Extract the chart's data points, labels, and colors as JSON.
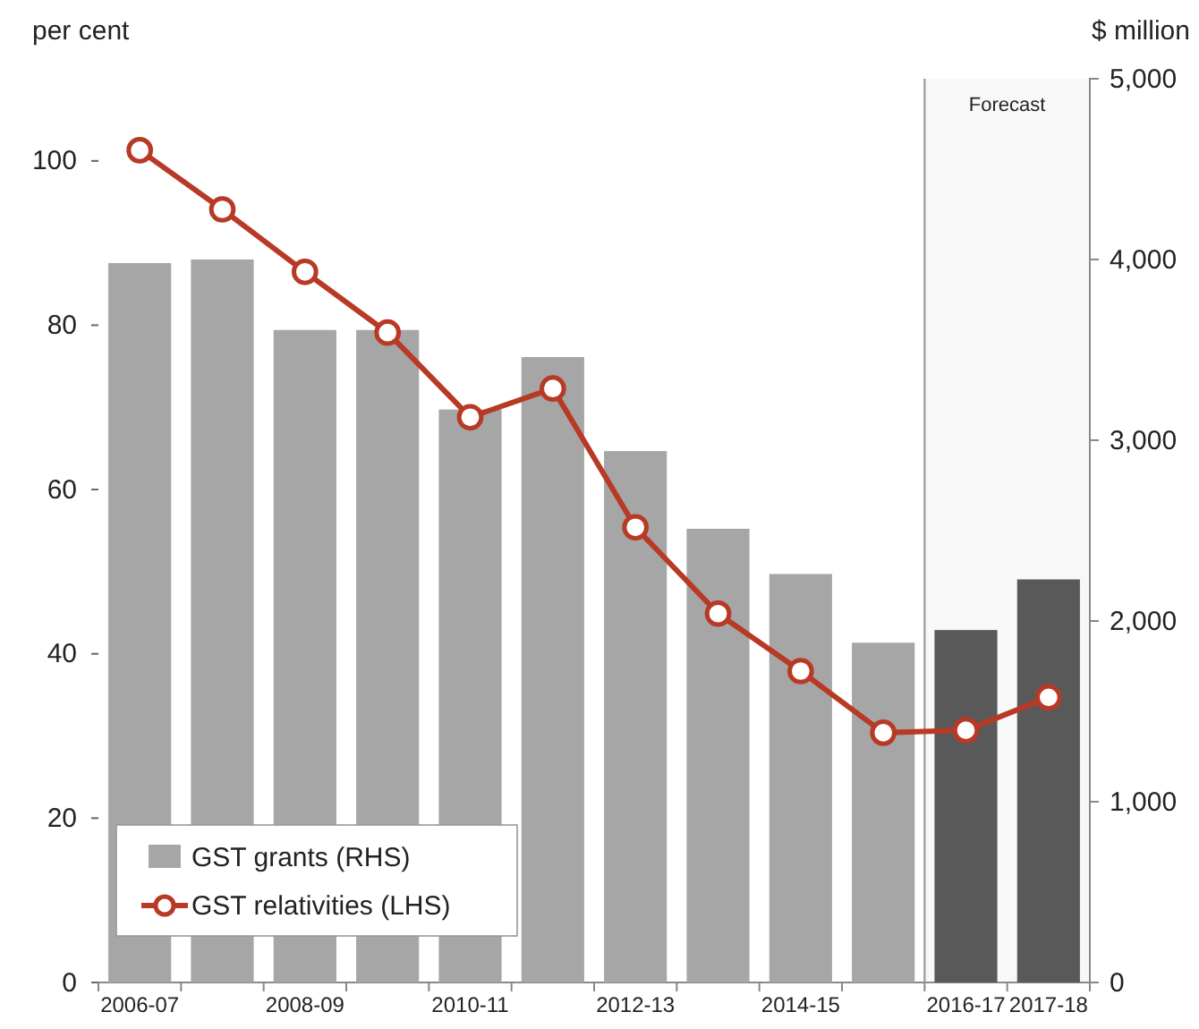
{
  "chart_data": {
    "type": "bar",
    "ylabel": "per cent",
    "y2label": "$ million",
    "categories": [
      "2006-07",
      null,
      "2008-09",
      null,
      "2010-11",
      null,
      "2012-13",
      null,
      "2014-15",
      null,
      "2016-17",
      "2017-18"
    ],
    "series": [
      {
        "name": "GST grants (RHS)",
        "axis": "y2",
        "color": "#a6a6a6",
        "colors": [
          "#a6a6a6",
          "#a6a6a6",
          "#a6a6a6",
          "#a6a6a6",
          "#a6a6a6",
          "#a6a6a6",
          "#a6a6a6",
          "#a6a6a6",
          "#a6a6a6",
          "#a6a6a6",
          "#595959",
          "#595959"
        ],
        "values": [
          3980,
          4000,
          3610,
          3610,
          3170,
          3460,
          2940,
          2510,
          2260,
          1880,
          1950,
          2230
        ]
      },
      {
        "name": "GST relativities (LHS)",
        "type": "line",
        "axis": "y",
        "color": "#b83a26",
        "values": [
          101.3,
          94.1,
          86.5,
          79.1,
          68.8,
          72.3,
          55.4,
          44.9,
          37.9,
          30.4,
          30.7,
          34.7
        ]
      }
    ],
    "ylim": [
      0,
      110
    ],
    "yticks": [
      0,
      20,
      40,
      60,
      80,
      100
    ],
    "y2lim": [
      0,
      5000
    ],
    "y2ticks": [
      0,
      {
        "value": 1000,
        "label": "1,000"
      },
      {
        "value": 2000,
        "label": "2,000"
      },
      {
        "value": 3000,
        "label": "3,000"
      },
      {
        "value": 4000,
        "label": "4,000"
      },
      {
        "value": 5000,
        "label": "5,000"
      }
    ],
    "bands": [
      {
        "axis": "x",
        "from": "2016-17",
        "to": "2017-18",
        "label": "Forecast",
        "color": "#a0a0a0"
      }
    ],
    "marker": "circle",
    "line_style": "solid",
    "legend": "bottom left",
    "grid": false
  }
}
